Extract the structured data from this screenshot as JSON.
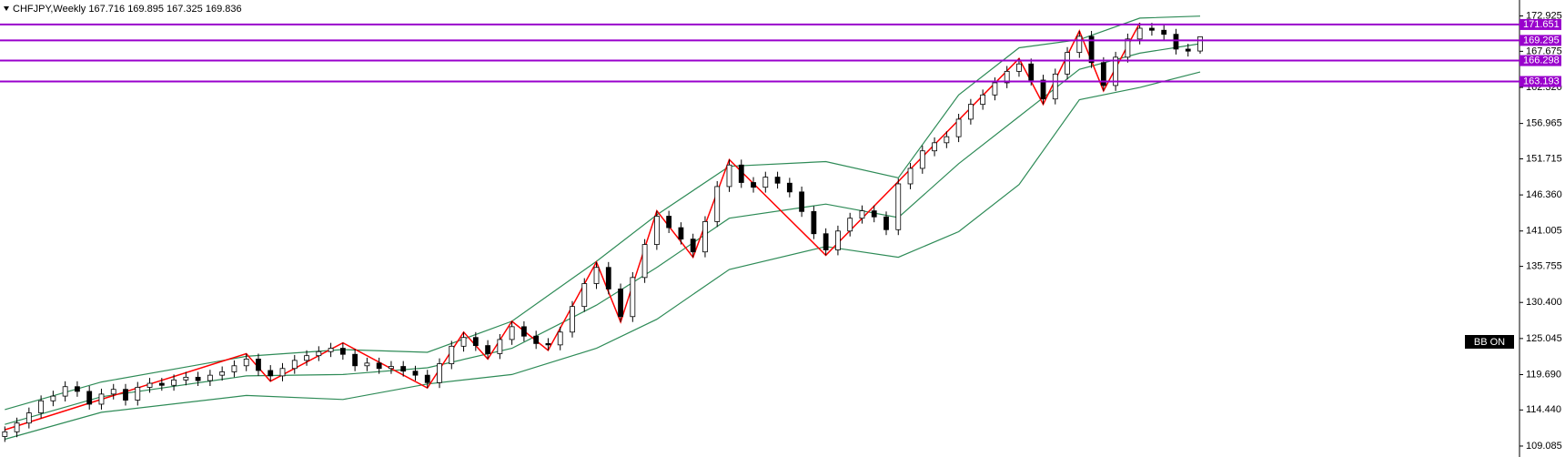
{
  "chart_data": {
    "type": "candlestick",
    "title": "CHFJPY,Weekly",
    "open": [
      110.5,
      111.2,
      112.5,
      114.0,
      115.8,
      116.5,
      117.9,
      117.2,
      115.3,
      116.8,
      117.5,
      115.9,
      117.8,
      118.4,
      118.1,
      118.9,
      119.3,
      118.8,
      119.6,
      120.1,
      121.0,
      122.0,
      120.3,
      119.5,
      120.6,
      121.8,
      122.5,
      123.1,
      123.6,
      122.7,
      121.0,
      121.4,
      120.6,
      120.9,
      120.2,
      119.6,
      118.5,
      121.3,
      123.9,
      125.2,
      124.0,
      122.8,
      124.9,
      126.8,
      125.4,
      124.3,
      124.1,
      126.0,
      129.8,
      133.2,
      135.6,
      132.4,
      128.3,
      134.1,
      139.0,
      143.2,
      141.5,
      139.8,
      137.9,
      142.4,
      147.6,
      150.8,
      148.2,
      147.5,
      149.0,
      148.1,
      146.8,
      143.9,
      140.6,
      138.2,
      141.0,
      142.9,
      144.0,
      143.1,
      141.2,
      148.0,
      150.3,
      152.9,
      154.1,
      155.0,
      157.6,
      159.8,
      161.2,
      163.0,
      164.7,
      165.8,
      163.4,
      160.6,
      164.3,
      167.5,
      169.9,
      166.0,
      162.6,
      166.8,
      169.5,
      171.1,
      170.8,
      170.2,
      168.0,
      167.716
    ],
    "high": [
      112.0,
      113.3,
      114.8,
      116.6,
      117.3,
      118.7,
      118.7,
      118.0,
      117.6,
      118.3,
      118.3,
      118.6,
      119.2,
      119.2,
      119.7,
      120.1,
      120.1,
      120.4,
      120.9,
      121.8,
      122.8,
      122.8,
      121.1,
      121.4,
      122.6,
      123.3,
      123.9,
      124.4,
      124.4,
      123.5,
      122.2,
      122.2,
      121.7,
      121.7,
      121.0,
      120.4,
      122.1,
      124.7,
      126.0,
      126.0,
      124.8,
      125.7,
      127.6,
      127.6,
      126.2,
      125.1,
      126.8,
      130.6,
      134.0,
      136.4,
      136.4,
      133.2,
      134.9,
      139.8,
      144.0,
      144.0,
      142.3,
      140.6,
      143.2,
      148.4,
      151.6,
      151.6,
      149.0,
      149.8,
      149.8,
      148.9,
      147.6,
      144.7,
      141.4,
      141.8,
      143.7,
      144.8,
      144.8,
      143.9,
      148.8,
      151.1,
      153.7,
      154.9,
      155.8,
      158.4,
      160.6,
      162.0,
      163.8,
      165.5,
      166.6,
      166.6,
      164.2,
      165.1,
      168.3,
      170.7,
      170.7,
      166.8,
      167.6,
      170.3,
      171.9,
      171.9,
      171.6,
      171.0,
      168.8,
      169.895
    ],
    "low": [
      109.7,
      110.4,
      111.7,
      113.2,
      115.0,
      115.7,
      116.4,
      114.5,
      114.5,
      116.0,
      115.1,
      115.1,
      117.0,
      117.3,
      117.3,
      118.1,
      118.0,
      118.0,
      118.8,
      119.3,
      120.2,
      119.5,
      118.7,
      118.7,
      119.8,
      121.0,
      121.7,
      122.3,
      121.9,
      120.2,
      120.2,
      119.8,
      119.8,
      119.4,
      118.8,
      117.7,
      117.7,
      120.5,
      123.1,
      123.2,
      122.0,
      122.0,
      124.1,
      124.6,
      123.5,
      123.3,
      123.3,
      125.2,
      129.0,
      132.4,
      131.6,
      127.5,
      127.5,
      133.3,
      138.2,
      140.7,
      139.0,
      137.1,
      137.1,
      141.6,
      146.8,
      147.4,
      146.7,
      146.7,
      147.3,
      146.0,
      143.1,
      139.8,
      137.4,
      137.4,
      140.2,
      142.1,
      142.3,
      140.4,
      140.4,
      147.2,
      149.5,
      152.1,
      153.3,
      154.2,
      156.8,
      159.0,
      160.4,
      162.2,
      163.9,
      162.6,
      159.8,
      159.8,
      163.5,
      166.7,
      165.2,
      161.8,
      161.8,
      166.0,
      168.7,
      170.0,
      169.4,
      167.2,
      166.9,
      167.325
    ],
    "close": [
      111.2,
      112.5,
      114.0,
      115.8,
      116.5,
      117.9,
      117.2,
      115.3,
      116.8,
      117.5,
      115.9,
      117.8,
      118.4,
      118.1,
      118.9,
      119.3,
      118.8,
      119.6,
      120.1,
      121.0,
      122.0,
      120.3,
      119.5,
      120.6,
      121.8,
      122.5,
      123.1,
      123.6,
      122.7,
      121.0,
      121.4,
      120.6,
      120.9,
      120.2,
      119.6,
      118.5,
      121.3,
      123.9,
      125.2,
      124.0,
      122.8,
      124.9,
      126.8,
      125.4,
      124.3,
      124.1,
      126.0,
      129.8,
      133.2,
      135.6,
      132.4,
      128.3,
      134.1,
      139.0,
      143.2,
      141.5,
      139.8,
      137.9,
      142.4,
      147.6,
      150.8,
      148.2,
      147.5,
      149.0,
      148.1,
      146.8,
      143.9,
      140.6,
      138.2,
      141.0,
      142.9,
      144.0,
      143.1,
      141.2,
      148.0,
      150.3,
      152.9,
      154.1,
      155.0,
      157.6,
      159.8,
      161.2,
      163.0,
      164.7,
      165.8,
      163.4,
      160.6,
      164.3,
      167.5,
      169.9,
      166.0,
      162.6,
      166.8,
      169.5,
      171.1,
      170.8,
      170.2,
      168.0,
      167.7,
      169.836
    ],
    "up_color": "#ffffff",
    "down_color": "#000000",
    "bands": {
      "color": "#2e8b57",
      "x": [
        0,
        8,
        20,
        28,
        35,
        42,
        49,
        54,
        60,
        68,
        74,
        79,
        84,
        89,
        94,
        99
      ],
      "upper": [
        114.5,
        118.6,
        122.4,
        123.4,
        123.0,
        127.6,
        136.5,
        143.4,
        150.6,
        151.3,
        148.9,
        161.2,
        168.2,
        169.4,
        172.6,
        172.9
      ],
      "middle": [
        112.3,
        116.4,
        119.5,
        119.7,
        120.7,
        123.6,
        130.0,
        135.6,
        142.9,
        145.0,
        143.0,
        151.0,
        158.0,
        165.0,
        167.4,
        168.8
      ],
      "lower": [
        110.1,
        114.1,
        116.6,
        116.0,
        118.3,
        119.7,
        123.6,
        127.9,
        135.3,
        138.7,
        137.1,
        140.9,
        147.9,
        160.5,
        162.3,
        164.6
      ]
    },
    "zigzag": {
      "color": "#ff0000",
      "x": [
        0,
        20,
        22,
        28,
        35,
        38,
        40,
        42,
        45,
        49,
        51,
        54,
        57,
        60,
        68,
        84,
        86,
        89,
        91,
        94
      ],
      "values": [
        111.5,
        122.8,
        118.7,
        124.4,
        117.7,
        126.0,
        122.0,
        127.6,
        123.3,
        136.4,
        127.5,
        144.0,
        137.1,
        151.6,
        137.4,
        166.6,
        159.8,
        170.7,
        161.8,
        171.9
      ]
    },
    "levels": {
      "color": "#9900cc",
      "values": [
        171.651,
        169.295,
        166.298,
        163.193
      ]
    },
    "label": "BB ON",
    "xlim": [
      -0.4,
      125.3
    ],
    "ylim": [
      107.46,
      175.29
    ],
    "yticks": [
      172.925,
      167.675,
      {
        "value": 162.32,
        "label": "162.320"
      },
      156.965,
      151.715,
      {
        "value": 146.36,
        "label": "146.360"
      },
      141.005,
      135.755,
      {
        "value": 130.4,
        "label": "130.400"
      },
      125.045,
      {
        "value": 119.69,
        "label": "119.690"
      },
      {
        "value": 114.44,
        "label": "114.440"
      },
      109.085
    ]
  }
}
